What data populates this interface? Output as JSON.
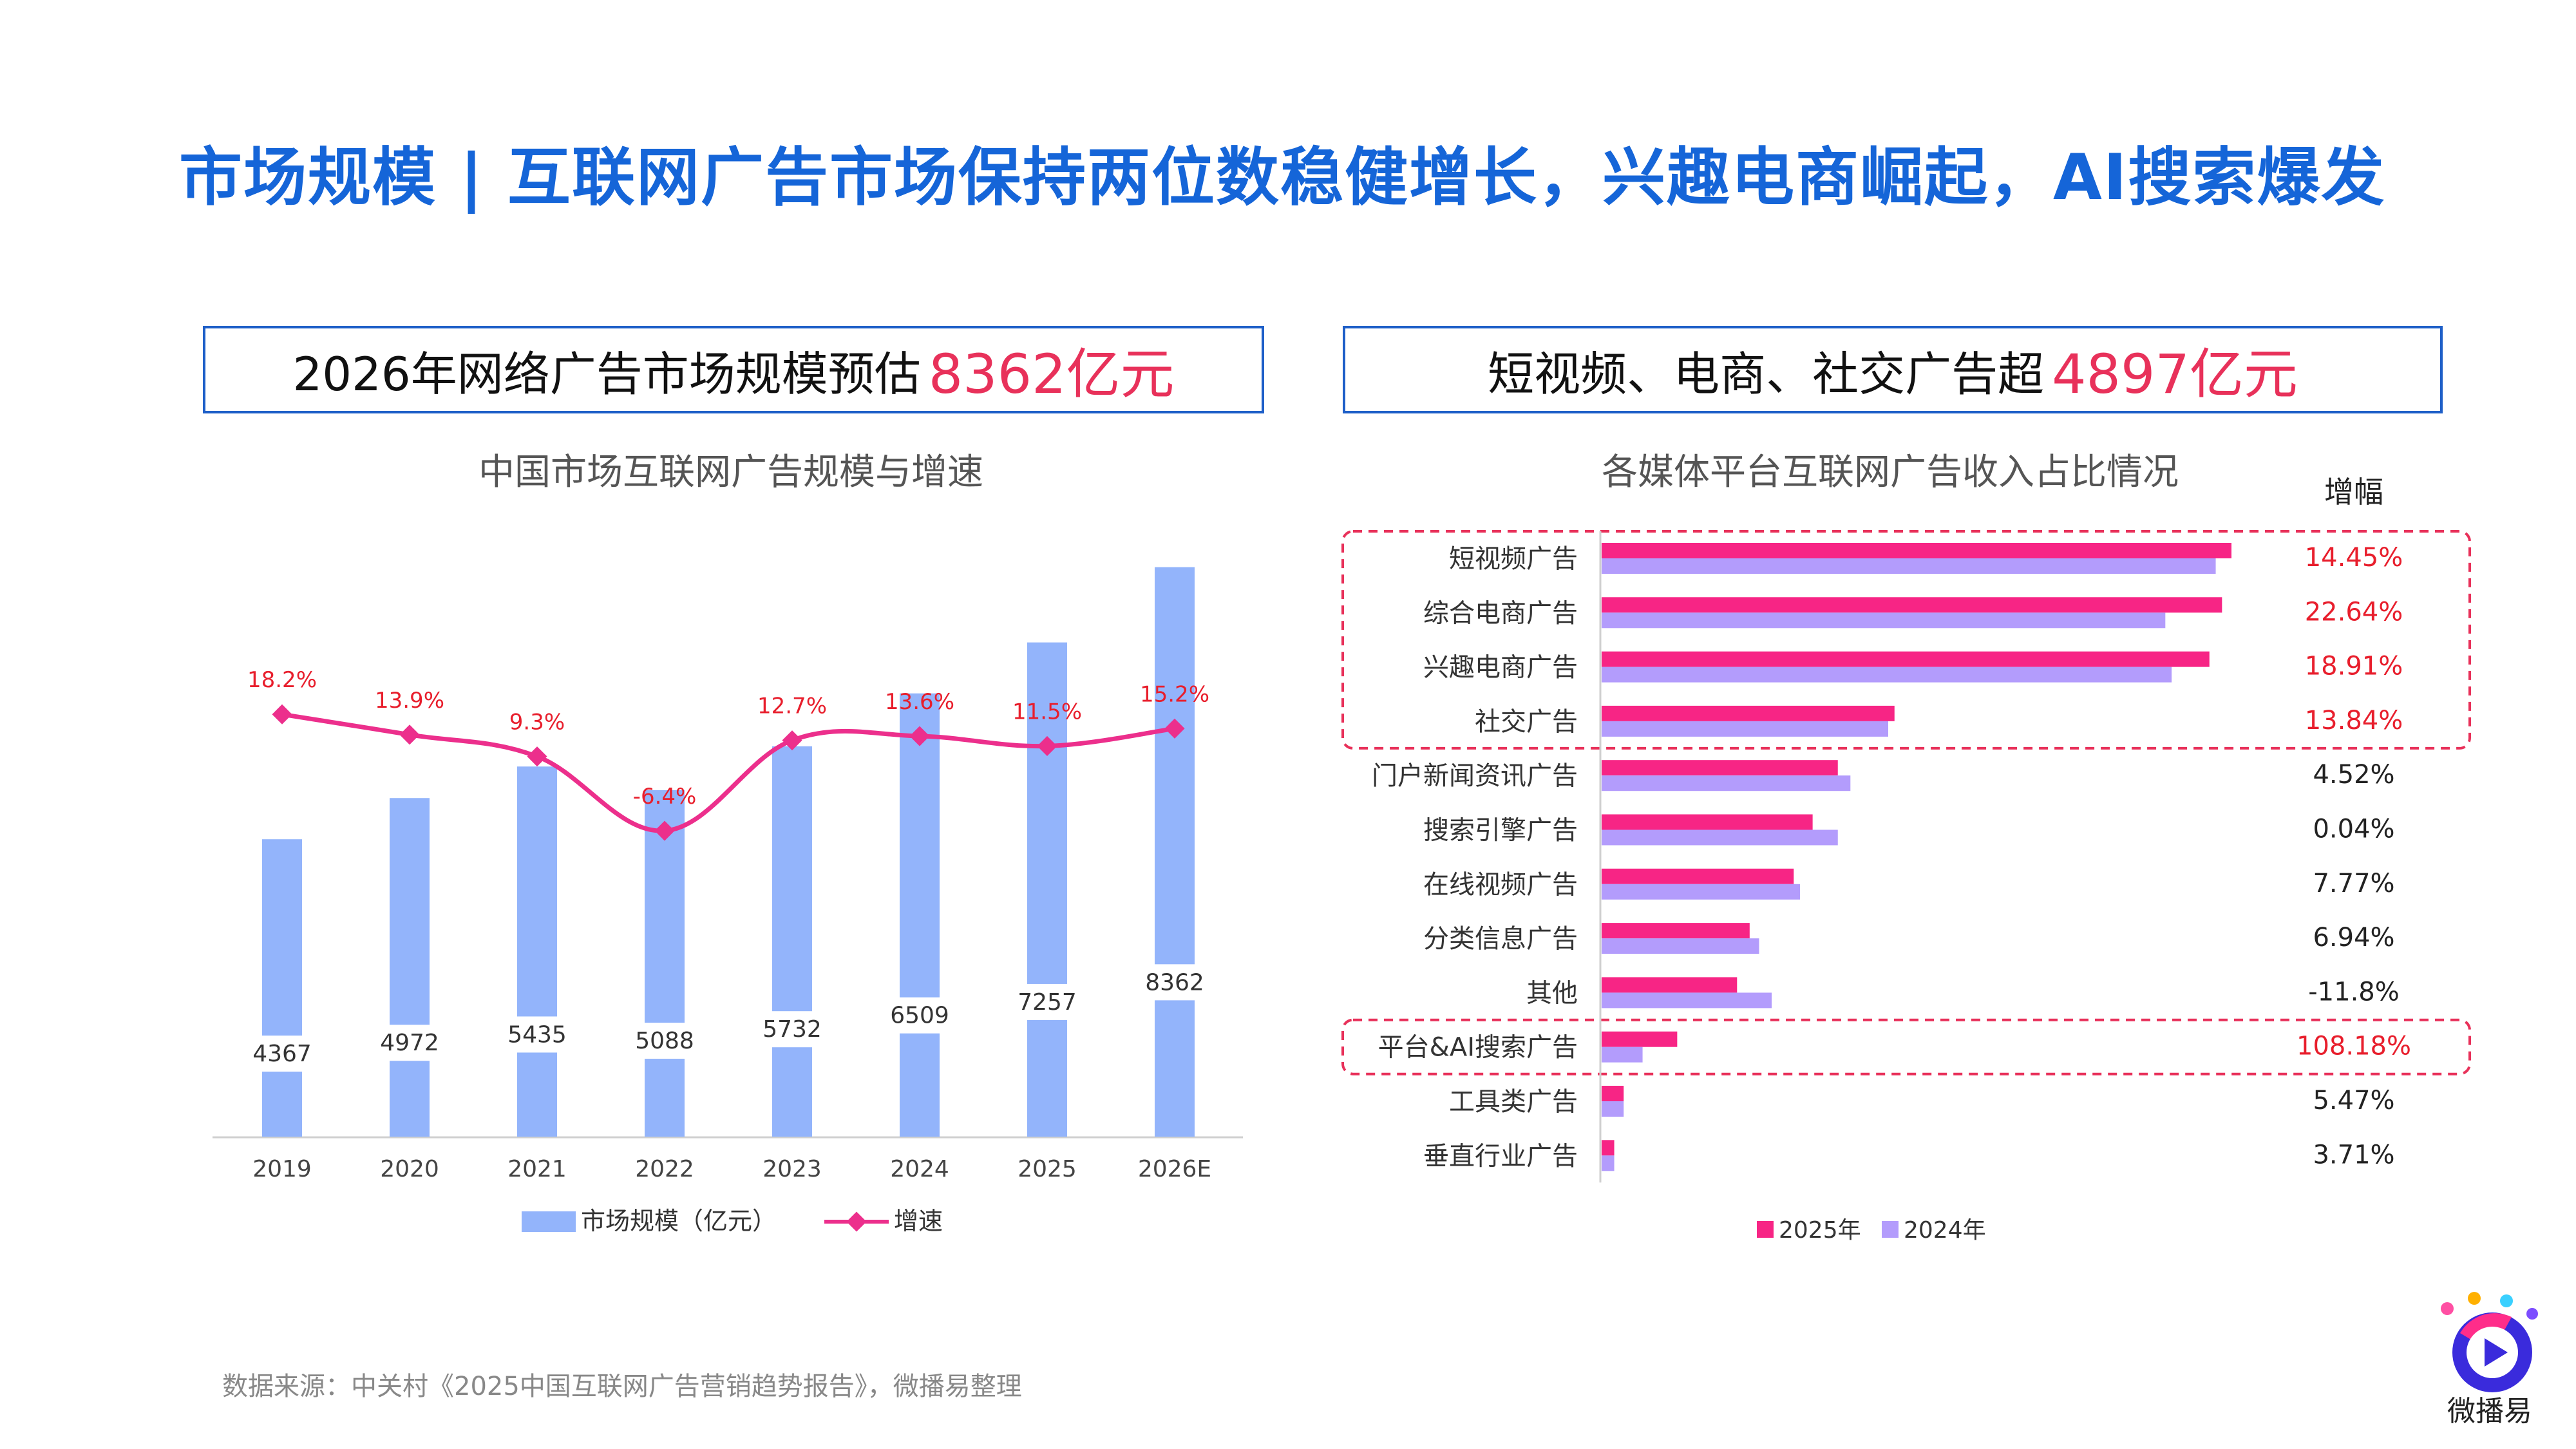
{
  "title": "市场规模 | 互联网广告市场保持两位数稳健增长，兴趣电商崛起，AI搜索爆发",
  "left_header": {
    "text": "2026年网络广告市场规模预估",
    "highlight": "8362亿元"
  },
  "right_header": {
    "text": "短视频、电商、社交广告超",
    "highlight": "4897亿元"
  },
  "source": "数据来源：中关村《2025中国互联网广告营销趋势报告》，微播易整理",
  "logo_text": "微播易",
  "colors": {
    "title": "#1565d8",
    "bar": "#93b4fb",
    "line": "#ec2f8c",
    "bar2025": "#f72585",
    "bar2024": "#b39cfc",
    "highlight": "#e8315a"
  },
  "chart_data": [
    {
      "type": "bar+line",
      "title": "中国市场互联网广告规模与增速",
      "categories": [
        "2019",
        "2020",
        "2021",
        "2022",
        "2023",
        "2024",
        "2025",
        "2026E"
      ],
      "series": [
        {
          "name": "市场规模（亿元）",
          "type": "bar",
          "values": [
            4367,
            4972,
            5435,
            5088,
            5732,
            6509,
            7257,
            8362
          ]
        },
        {
          "name": "增速",
          "type": "line",
          "values": [
            18.2,
            13.9,
            9.3,
            -6.4,
            12.7,
            13.6,
            11.5,
            15.2
          ],
          "labels": [
            "18.2%",
            "13.9%",
            "9.3%",
            "-6.4%",
            "12.7%",
            "13.6%",
            "11.5%",
            "15.2%"
          ]
        }
      ],
      "legend": "bottom"
    },
    {
      "type": "bar",
      "orientation": "horizontal",
      "title": "各媒体平台互联网广告收入占比情况",
      "growth_header": "增幅",
      "categories": [
        "短视频广告",
        "综合电商广告",
        "兴趣电商广告",
        "社交广告",
        "门户新闻资讯广告",
        "搜索引擎广告",
        "在线视频广告",
        "分类信息广告",
        "其他",
        "平台&AI搜索广告",
        "工具类广告",
        "垂直行业广告"
      ],
      "series": [
        {
          "name": "2025年",
          "values": [
            100,
            98.5,
            96.5,
            46.5,
            37.5,
            33.5,
            30.5,
            23.5,
            21.5,
            12,
            3.5,
            2
          ]
        },
        {
          "name": "2024年",
          "values": [
            97.5,
            89.5,
            90.5,
            45.5,
            39.5,
            37.5,
            31.5,
            25,
            27,
            6.5,
            3.5,
            2
          ]
        }
      ],
      "growth": [
        "14.45%",
        "22.64%",
        "18.91%",
        "13.84%",
        "4.52%",
        "0.04%",
        "7.77%",
        "6.94%",
        "-11.8%",
        "108.18%",
        "5.47%",
        "3.71%"
      ],
      "highlight_rows": [
        0,
        1,
        2,
        3,
        9
      ],
      "legend": "bottom"
    }
  ]
}
